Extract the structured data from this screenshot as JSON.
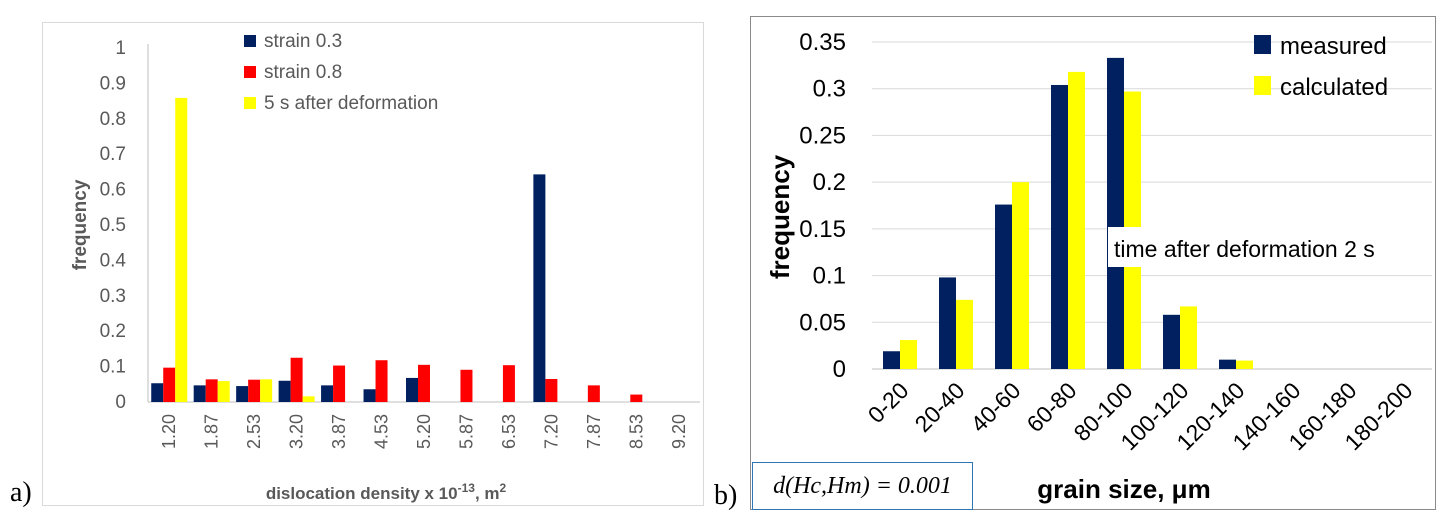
{
  "panels": {
    "a": {
      "letter": "a)"
    },
    "b": {
      "letter": "b)"
    }
  },
  "formula_box": "d(Hc,Hm) = 0.001",
  "chart_data": [
    {
      "type": "bar",
      "panel": "a",
      "title": "",
      "xlabel": "dislocation density x 10^-13, m^2",
      "xlabel_main": "dislocation density x 10",
      "xlabel_exp": "-13",
      "xlabel_tail": ", m",
      "xlabel_sq": "2",
      "ylabel": "frequency",
      "ylim": [
        0,
        1
      ],
      "yticks": [
        "0",
        "0.1",
        "0.2",
        "0.3",
        "0.4",
        "0.5",
        "0.6",
        "0.7",
        "0.8",
        "0.9",
        "1"
      ],
      "ytick_values": [
        0,
        0.1,
        0.2,
        0.3,
        0.4,
        0.5,
        0.6,
        0.7,
        0.8,
        0.9,
        1
      ],
      "categories": [
        "1.20",
        "1.87",
        "2.53",
        "3.20",
        "3.87",
        "4.53",
        "5.20",
        "5.87",
        "6.53",
        "7.20",
        "7.87",
        "8.53",
        "9.20"
      ],
      "legend_position": "top-center",
      "series": [
        {
          "name": "strain 0.3",
          "color": "#002060",
          "values": [
            0.053,
            0.047,
            0.045,
            0.06,
            0.047,
            0.036,
            0.068,
            0,
            0,
            0.643,
            0,
            0,
            0
          ]
        },
        {
          "name": "strain 0.8",
          "color": "#ff0000",
          "values": [
            0.097,
            0.064,
            0.063,
            0.125,
            0.103,
            0.118,
            0.105,
            0.091,
            0.104,
            0.065,
            0.047,
            0.021,
            0
          ]
        },
        {
          "name": "5 s after deformation",
          "color": "#ffff00",
          "values": [
            0.859,
            0.059,
            0.064,
            0.016,
            0,
            0,
            0,
            0,
            0,
            0,
            0,
            0,
            0
          ]
        }
      ]
    },
    {
      "type": "bar",
      "panel": "b",
      "title": "",
      "xlabel": "grain size, μm",
      "ylabel": "frequency",
      "ylim": [
        0,
        0.35
      ],
      "yticks": [
        "0",
        "0.05",
        "0.1",
        "0.15",
        "0.2",
        "0.25",
        "0.3",
        "0.35"
      ],
      "ytick_values": [
        0,
        0.05,
        0.1,
        0.15,
        0.2,
        0.25,
        0.3,
        0.35
      ],
      "categories": [
        "0-20",
        "20-40",
        "40-60",
        "60-80",
        "80-100",
        "100-120",
        "120-140",
        "140-160",
        "160-180",
        "180-200"
      ],
      "legend_position": "top-right",
      "annotation": "time after deformation 2 s",
      "series": [
        {
          "name": "measured",
          "color": "#002060",
          "values": [
            0.019,
            0.098,
            0.176,
            0.304,
            0.333,
            0.058,
            0.01,
            0,
            0,
            0
          ]
        },
        {
          "name": "calculated",
          "color": "#ffff00",
          "values": [
            0.031,
            0.074,
            0.2,
            0.318,
            0.297,
            0.067,
            0.009,
            0,
            0,
            0
          ]
        }
      ]
    }
  ]
}
